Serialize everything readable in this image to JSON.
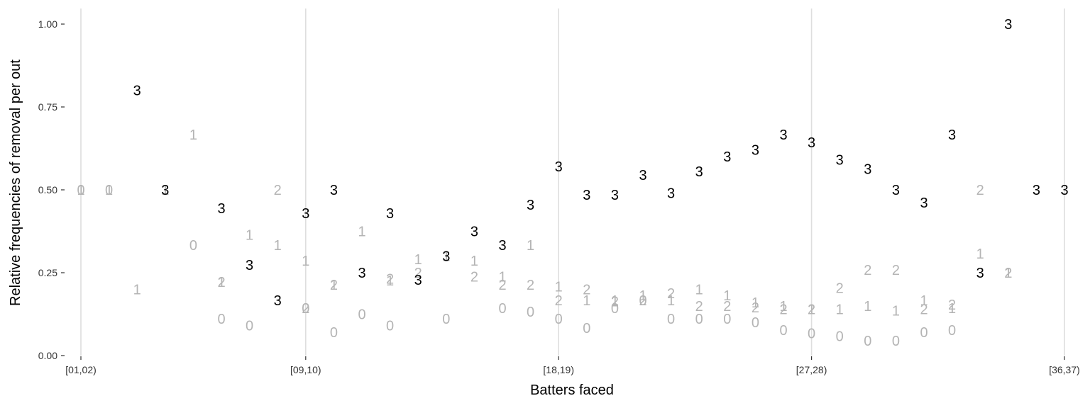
{
  "chart_data": {
    "type": "scatter",
    "title": "",
    "xlabel": "Batters faced",
    "ylabel": "Relative frequencies of removal per out",
    "x_tick_labels": [
      "[01,02)",
      "[09,10)",
      "[18,19)",
      "[27,28)",
      "[36,37)"
    ],
    "x_tick_positions": [
      1,
      9,
      18,
      27,
      36
    ],
    "xlim": [
      1,
      36
    ],
    "y_ticks": [
      0,
      0.25,
      0.5,
      0.75,
      1
    ],
    "y_tick_labels": [
      "0.00",
      "0.25",
      "0.50",
      "0.75",
      "1.00"
    ],
    "ylim": [
      0,
      1
    ],
    "grid": "vertical major lines only",
    "legend": "none",
    "point_markers": "text digits showing outs (0, 1, 2, 3)",
    "colors": {
      "outs_0_1_2": "#b4b4b4",
      "outs_3": "#000000",
      "grid": "#dedede"
    },
    "series": [
      {
        "outs": "0",
        "color": "#b4b4b4",
        "x": [
          1,
          2,
          5,
          6,
          7,
          9,
          10,
          11,
          12,
          14,
          16,
          17,
          18,
          19,
          20,
          21,
          22,
          23,
          24,
          25,
          26,
          27,
          28,
          29,
          30,
          31,
          32
        ],
        "y": [
          0.5,
          0.5,
          0.333,
          0.111,
          0.091,
          0.143,
          0.071,
          0.125,
          0.091,
          0.111,
          0.143,
          0.133,
          0.111,
          0.083,
          0.143,
          0.167,
          0.111,
          0.111,
          0.111,
          0.1,
          0.077,
          0.067,
          0.059,
          0.045,
          0.045,
          0.071,
          0.077
        ]
      },
      {
        "outs": "1",
        "color": "#b4b4b4",
        "x": [
          1,
          2,
          3,
          4,
          5,
          6,
          7,
          8,
          9,
          10,
          11,
          12,
          13,
          14,
          15,
          16,
          17,
          18,
          19,
          20,
          21,
          22,
          23,
          24,
          25,
          26,
          27,
          28,
          29,
          30,
          31,
          32,
          33,
          34
        ],
        "y": [
          0.5,
          0.5,
          0.2,
          0.5,
          0.667,
          0.222,
          0.364,
          0.333,
          0.286,
          0.214,
          0.375,
          0.227,
          0.291,
          0.3,
          0.286,
          0.238,
          0.333,
          0.208,
          0.167,
          0.167,
          0.182,
          0.167,
          0.2,
          0.182,
          0.16,
          0.15,
          0.14,
          0.14,
          0.15,
          0.136,
          0.167,
          0.143,
          0.308,
          0.25
        ]
      },
      {
        "outs": "2",
        "color": "#b4b4b4",
        "x": [
          6,
          8,
          9,
          10,
          12,
          13,
          15,
          16,
          17,
          18,
          19,
          20,
          21,
          22,
          23,
          24,
          25,
          26,
          27,
          28,
          29,
          30,
          31,
          32,
          33,
          34
        ],
        "y": [
          0.222,
          0.5,
          0.143,
          0.214,
          0.232,
          0.25,
          0.238,
          0.214,
          0.214,
          0.167,
          0.2,
          0.163,
          0.167,
          0.188,
          0.15,
          0.15,
          0.145,
          0.14,
          0.14,
          0.204,
          0.259,
          0.259,
          0.14,
          0.154,
          0.5,
          0.25
        ]
      },
      {
        "outs": "3",
        "color": "#000000",
        "x": [
          3,
          4,
          6,
          7,
          8,
          9,
          10,
          11,
          12,
          13,
          14,
          15,
          16,
          17,
          18,
          19,
          20,
          21,
          22,
          23,
          24,
          25,
          26,
          27,
          28,
          29,
          30,
          31,
          32,
          33,
          34,
          35,
          36
        ],
        "y": [
          0.8,
          0.5,
          0.444,
          0.273,
          0.167,
          0.429,
          0.5,
          0.25,
          0.429,
          0.229,
          0.3,
          0.375,
          0.333,
          0.455,
          0.571,
          0.485,
          0.485,
          0.545,
          0.49,
          0.556,
          0.6,
          0.621,
          0.667,
          0.643,
          0.591,
          0.563,
          0.5,
          0.462,
          0.667,
          0.25,
          1.0,
          0.5,
          0.5
        ]
      }
    ]
  }
}
